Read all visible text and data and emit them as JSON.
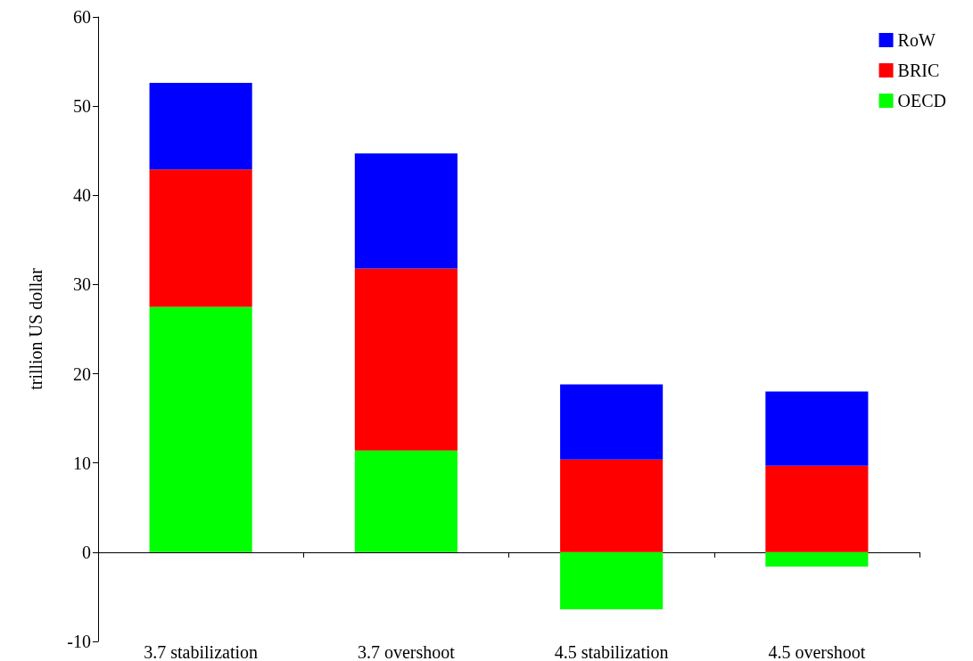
{
  "chart_data": {
    "type": "bar",
    "stacked": true,
    "ylabel": "trillion US dollar",
    "categories": [
      "3.7 stabilization",
      "3.7 overshoot",
      "4.5 stabilization",
      "4.5 overshoot"
    ],
    "series": [
      {
        "name": "OECD",
        "color": "#00ff00",
        "values": [
          27.5,
          11.4,
          -6.4,
          -1.6
        ]
      },
      {
        "name": "BRIC",
        "color": "#ff0000",
        "values": [
          15.4,
          20.4,
          10.4,
          9.7
        ]
      },
      {
        "name": "RoW",
        "color": "#0000ff",
        "values": [
          9.7,
          12.9,
          8.4,
          8.3
        ]
      }
    ],
    "ylim": [
      -10,
      60
    ],
    "yticks": [
      -10,
      0,
      10,
      20,
      30,
      40,
      50,
      60
    ],
    "legend": "top right"
  }
}
